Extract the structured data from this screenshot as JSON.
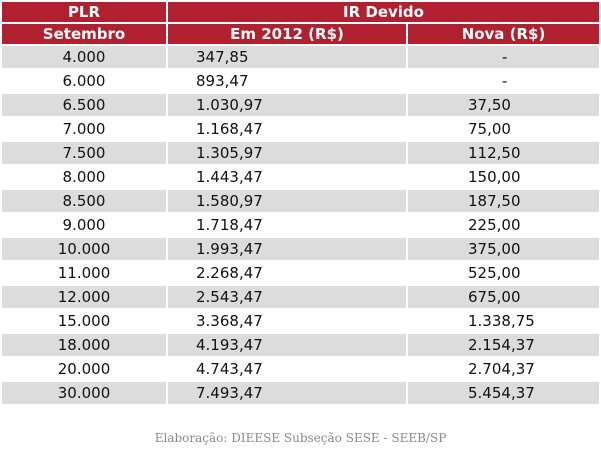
{
  "header": {
    "col1_top": "PLR",
    "col23_top": "IR Devido",
    "col1_sub": "Setembro",
    "col2_sub": "Em 2012 (R$)",
    "col3_sub": "Nova (R$)"
  },
  "rows": [
    {
      "plr": "4.000",
      "em2012": "347,85",
      "nova": "-"
    },
    {
      "plr": "6.000",
      "em2012": "893,47",
      "nova": "-"
    },
    {
      "plr": "6.500",
      "em2012": "1.030,97",
      "nova": "37,50"
    },
    {
      "plr": "7.000",
      "em2012": "1.168,47",
      "nova": "75,00"
    },
    {
      "plr": "7.500",
      "em2012": "1.305,97",
      "nova": "112,50"
    },
    {
      "plr": "8.000",
      "em2012": "1.443,47",
      "nova": "150,00"
    },
    {
      "plr": "8.500",
      "em2012": "1.580,97",
      "nova": "187,50"
    },
    {
      "plr": "9.000",
      "em2012": "1.718,47",
      "nova": "225,00"
    },
    {
      "plr": "10.000",
      "em2012": "1.993,47",
      "nova": "375,00"
    },
    {
      "plr": "11.000",
      "em2012": "2.268,47",
      "nova": "525,00"
    },
    {
      "plr": "12.000",
      "em2012": "2.543,47",
      "nova": "675,00"
    },
    {
      "plr": "15.000",
      "em2012": "3.368,47",
      "nova": "1.338,75"
    },
    {
      "plr": "18.000",
      "em2012": "4.193,47",
      "nova": "2.154,37"
    },
    {
      "plr": "20.000",
      "em2012": "4.743,47",
      "nova": "2.704,37"
    },
    {
      "plr": "30.000",
      "em2012": "7.493,47",
      "nova": "5.454,37"
    }
  ],
  "footer": "Elaboração: DIEESE Subseção SESE - SEEB/SP",
  "colors": {
    "header_bg": "#b0202e",
    "row_odd_bg": "#dcdcdc",
    "row_even_bg": "#ffffff"
  }
}
